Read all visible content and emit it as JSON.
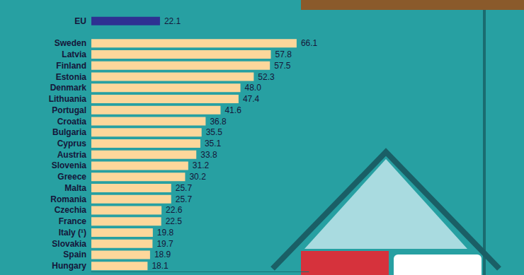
{
  "chart_data": {
    "type": "bar",
    "orientation": "horizontal",
    "categories": [
      "EU",
      null,
      "Sweden",
      "Latvia",
      "Finland",
      "Estonia",
      "Denmark",
      "Lithuania",
      "Portugal",
      "Croatia",
      "Bulgaria",
      "Cyprus",
      "Austria",
      "Slovenia",
      "Greece",
      "Malta",
      "Romania",
      "Czechia",
      "France",
      "Italy (¹)",
      "Slovakia",
      "Spain",
      "Hungary"
    ],
    "values": [
      22.1,
      null,
      66.1,
      57.8,
      57.5,
      52.3,
      48.0,
      47.4,
      41.6,
      36.8,
      35.5,
      35.1,
      33.8,
      31.2,
      30.2,
      25.7,
      25.7,
      22.6,
      22.5,
      19.8,
      19.7,
      18.9,
      18.1
    ],
    "value_labels": [
      "22.1",
      null,
      "66.1",
      "57.8",
      "57.5",
      "52.3",
      "48.0",
      "47.4",
      "41.6",
      "36.8",
      "35.5",
      "35.1",
      "33.8",
      "31.2",
      "30.2",
      "25.7",
      "25.7",
      "22.6",
      "22.5",
      "19.8",
      "19.7",
      "18.9",
      "18.1"
    ],
    "colors": [
      "#2e3192",
      "#fdd79b",
      "#fdd79b",
      "#fdd79b",
      "#fdd79b",
      "#fdd79b",
      "#fdd79b",
      "#fdd79b",
      "#fdd79b",
      "#fdd79b",
      "#fdd79b",
      "#fdd79b",
      "#fdd79b",
      "#fdd79b",
      "#fdd79b",
      "#fdd79b",
      "#fdd79b",
      "#fdd79b",
      "#fdd79b",
      "#fdd79b",
      "#fdd79b",
      "#fdd79b",
      "#fdd79b"
    ],
    "xlim": [
      0,
      70
    ],
    "data_labels": true,
    "tick_labels": "y",
    "grid": false
  }
}
